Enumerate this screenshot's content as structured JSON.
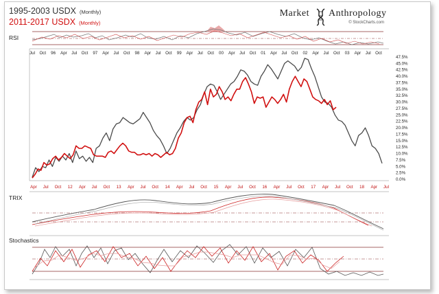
{
  "header": {
    "title1": "1995-2003 USDX",
    "title1_sub": "(Monthly)",
    "title2": "2011-2017 USDX",
    "title2_sub": "(Monthly)",
    "brand_left": "Market",
    "brand_right": "Anthropology",
    "credit": "© StockCharts.com"
  },
  "panels": {
    "rsi_label": "RSI",
    "trix_label": "TRIX",
    "stoch_label": "Stochastics"
  },
  "colors": {
    "series_1995": "#4a4a4a",
    "series_2011": "#d11010",
    "rsi_fill": "#e9a9a9",
    "grid": "#8a3030"
  },
  "chart_data": {
    "type": "line",
    "x_top_ticks": [
      "Jul",
      "Oct",
      "96",
      "Apr",
      "Jul",
      "Oct",
      "97",
      "Apr",
      "Jul",
      "Oct",
      "98",
      "Apr",
      "Jul",
      "Oct",
      "99",
      "Apr",
      "Jul",
      "Oct",
      "00",
      "Apr",
      "Jul",
      "Oct",
      "01",
      "Apr",
      "Jul",
      "Oct",
      "02",
      "Apr",
      "Jul",
      "Oct",
      "03",
      "Apr",
      "Jul",
      "Oct"
    ],
    "x_bottom_ticks": [
      "Apr",
      "Jul",
      "Oct",
      "12",
      "Apr",
      "Jul",
      "Oct",
      "13",
      "Apr",
      "Jul",
      "Oct",
      "14",
      "Apr",
      "Jul",
      "Oct",
      "15",
      "Apr",
      "Jul",
      "Oct",
      "16",
      "Apr",
      "Jul",
      "Oct",
      "17",
      "Apr",
      "Jul",
      "Oct",
      "18",
      "Apr",
      "Jul"
    ],
    "y_ticks": [
      "47.5%",
      "45.0%",
      "42.5%",
      "40.0%",
      "37.5%",
      "35.0%",
      "32.5%",
      "30.0%",
      "27.5%",
      "25.0%",
      "22.5%",
      "20.0%",
      "17.5%",
      "15.0%",
      "12.5%",
      "10.0%",
      "7.5%",
      "5.0%",
      "2.5%",
      "0.0%"
    ],
    "ylim": [
      0,
      47.5
    ],
    "series": [
      {
        "name": "1995-2003 USDX",
        "values": [
          0.8,
          4.5,
          3,
          5,
          4.5,
          7.5,
          5,
          8.5,
          7,
          9,
          7.5,
          10,
          6.5,
          11,
          8,
          9,
          7,
          8.5,
          6.5,
          12,
          13,
          16,
          18,
          15,
          19.5,
          21.5,
          22,
          24,
          23,
          22,
          21.5,
          22.5,
          23.5,
          26,
          24,
          22,
          19,
          17,
          15.5,
          13,
          10,
          12,
          15,
          18,
          20,
          22.5,
          24,
          23,
          24,
          27,
          29,
          33,
          36,
          37,
          36.5,
          34,
          31,
          33,
          35,
          37,
          38,
          40,
          42.5,
          42,
          40.5,
          38,
          37,
          36.5,
          40,
          42,
          44.5,
          43,
          41,
          39,
          42,
          45,
          46,
          45,
          44,
          42,
          43.5,
          47,
          46.5,
          43,
          40,
          36,
          32,
          30,
          29.5,
          28,
          25,
          23,
          22.5,
          21,
          18,
          15,
          13,
          17,
          18,
          20,
          17,
          13,
          12,
          10,
          6.2
        ]
      },
      {
        "name": "2011-2017 USDX",
        "values": [
          0.5,
          2,
          4,
          3.5,
          6.5,
          5.5,
          6,
          8,
          9,
          7.5,
          8.5,
          10,
          9,
          8,
          9.5,
          13,
          12,
          12,
          13,
          12.5,
          12,
          9.5,
          9,
          9,
          9,
          8.5,
          10.5,
          11,
          10,
          11.5,
          13,
          14,
          13,
          11,
          10.5,
          10.5,
          9.5,
          9.5,
          10,
          9.5,
          10,
          9,
          10,
          9.5,
          8.5,
          9.5,
          10.5,
          9.5,
          10,
          12,
          16,
          18,
          22,
          24,
          24.5,
          22,
          27,
          30,
          31,
          34,
          29,
          35,
          32,
          33,
          36,
          34,
          31,
          32,
          30.5,
          33,
          35,
          35,
          38,
          39.5,
          37,
          34,
          29.5,
          32,
          31.5,
          32,
          28,
          30,
          32,
          31,
          29.5,
          31,
          33,
          30,
          35,
          38,
          40,
          38,
          36,
          39,
          38,
          35,
          32,
          31,
          30.5,
          29.5,
          31,
          29,
          30.5,
          27,
          28
        ]
      }
    ]
  }
}
